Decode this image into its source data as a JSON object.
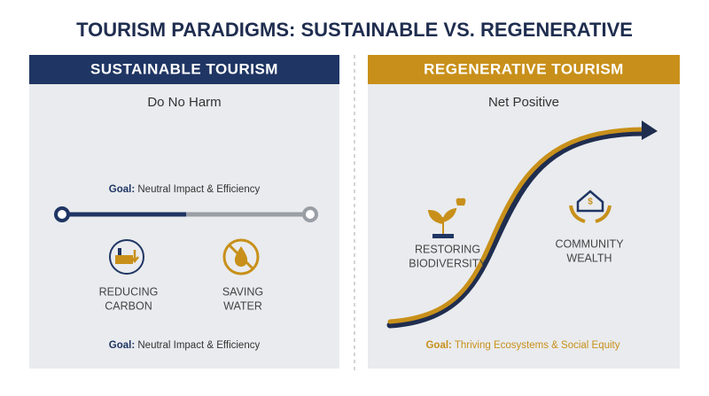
{
  "title": "TOURISM PARADIGMS: SUSTAINABLE VS. REGENERATIVE",
  "left": {
    "header": "SUSTAINABLE TOURISM",
    "subtitle": "Do No Harm",
    "goal_top": {
      "label": "Goal:",
      "text": "Neutral Impact & Efficiency"
    },
    "items": [
      {
        "lines": [
          "REDUCING",
          "CARBON"
        ]
      },
      {
        "lines": [
          "SAVING",
          "WATER"
        ]
      }
    ],
    "goal_bottom": {
      "label": "Goal:",
      "text": "Neutral Impact & Efficiency"
    }
  },
  "right": {
    "header": "REGENERATIVE TOURISM",
    "subtitle": "Net Positive",
    "items": [
      {
        "lines": [
          "RESTORING",
          "BIODIVERSITY"
        ]
      },
      {
        "lines": [
          "COMMUNITY",
          "WEALTH"
        ]
      }
    ],
    "goal": {
      "label": "Goal:",
      "text": "Thriving Ecosystems & Social Equity"
    }
  }
}
